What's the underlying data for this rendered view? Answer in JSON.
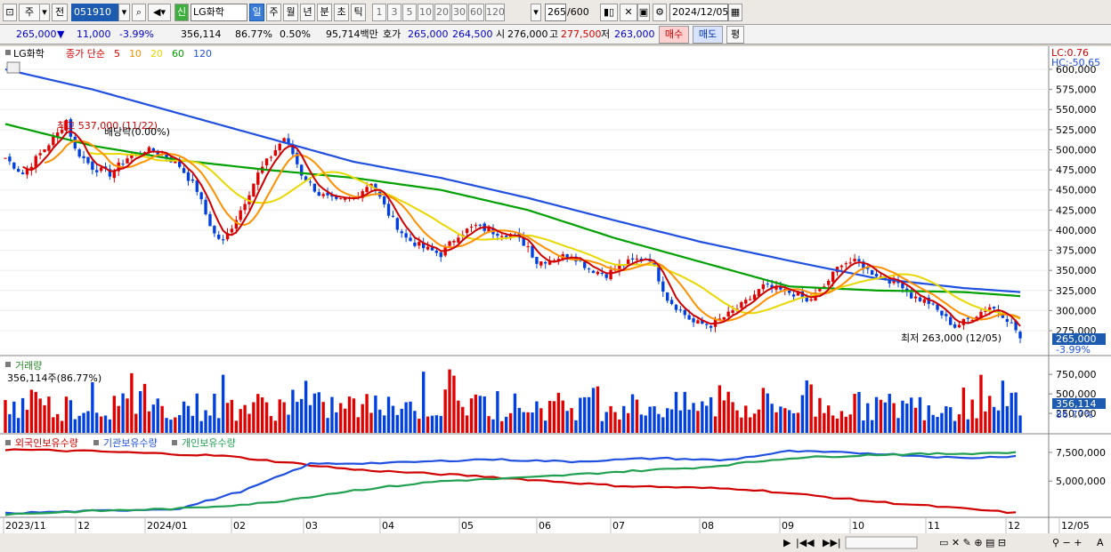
{
  "toolbar": {
    "period_buttons": [
      "일",
      "주",
      "월",
      "년",
      "분",
      "초",
      "틱"
    ],
    "active_period": "일",
    "interval_buttons": [
      "1",
      "3",
      "5",
      "10",
      "20",
      "30",
      "60",
      "120"
    ],
    "market_label": "주",
    "prev_label": "전",
    "code": "051910",
    "new_badge": "신",
    "stock_name": "LG화학",
    "count": "265",
    "count_total": "/600",
    "date": "2024/12/05"
  },
  "quote": {
    "price": "265,000",
    "arrow": "▼",
    "change": "11,000",
    "change_pct": "-3.99%",
    "volume": "356,114",
    "vol_ratio": "86.77%",
    "turnover": "0.50%",
    "amount": "95,714백만",
    "hoga_label": "호가",
    "ask": "265,000",
    "bid": "264,500",
    "open_label": "시",
    "open": "276,000",
    "high_label": "고",
    "high": "277,500",
    "low_label": "저",
    "low": "263,000",
    "buy_button": "매수",
    "sell_button": "매도",
    "eval_button": "평"
  },
  "price_panel": {
    "legend_name": "LG화학",
    "legend_type": "종가 단순",
    "ma_periods": [
      "5",
      "10",
      "20",
      "60",
      "120"
    ],
    "ma_colors": [
      "#d00000",
      "#ff9000",
      "#e8d800",
      "#00a000",
      "#2050e0"
    ],
    "lc": "LC:0.76",
    "hc": "HC:-50.65",
    "high_annotation": "최고 537,000 (11/22)",
    "dividend_annotation": "배당락(0.00%)",
    "low_annotation": "최저 263,000 (12/05)",
    "current_price_tag": "265,000",
    "current_change_tag": "-3.99%",
    "y_ticks": [
      "600,000",
      "575,000",
      "550,000",
      "525,000",
      "500,000",
      "475,000",
      "450,000",
      "425,000",
      "400,000",
      "375,000",
      "350,000",
      "325,000",
      "300,000",
      "275,000"
    ]
  },
  "volume_panel": {
    "title": "거래량",
    "readout": "356,114주(86.77%)",
    "y_ticks": [
      "750,000",
      "500,000",
      "250,000"
    ],
    "current_tag": "356,114",
    "current_pct": "86.77%"
  },
  "holding_panel": {
    "series": [
      {
        "name": "외국인보유수량",
        "color": "#d00000"
      },
      {
        "name": "기관보유수량",
        "color": "#2050e0"
      },
      {
        "name": "개인보유수량",
        "color": "#20a050"
      }
    ],
    "y_ticks": [
      "7,500,000",
      "5,000,000"
    ]
  },
  "x_axis": {
    "labels": [
      "2023/11",
      "12",
      "2024/01",
      "02",
      "03",
      "04",
      "05",
      "06",
      "07",
      "08",
      "09",
      "10",
      "11",
      "12",
      "12/05"
    ]
  },
  "chart_data": {
    "type": "candlestick",
    "y_range": [
      260000,
      610000
    ],
    "price_path": [
      [
        0,
        490000
      ],
      [
        4,
        470000
      ],
      [
        8,
        495000
      ],
      [
        12,
        520000
      ],
      [
        14,
        537000
      ],
      [
        16,
        500000
      ],
      [
        20,
        478000
      ],
      [
        24,
        470000
      ],
      [
        28,
        490000
      ],
      [
        32,
        500000
      ],
      [
        36,
        495000
      ],
      [
        40,
        480000
      ],
      [
        44,
        450000
      ],
      [
        46,
        420000
      ],
      [
        48,
        395000
      ],
      [
        50,
        385000
      ],
      [
        54,
        425000
      ],
      [
        58,
        470000
      ],
      [
        62,
        500000
      ],
      [
        64,
        515000
      ],
      [
        66,
        495000
      ],
      [
        68,
        470000
      ],
      [
        72,
        445000
      ],
      [
        76,
        435000
      ],
      [
        80,
        440000
      ],
      [
        84,
        460000
      ],
      [
        86,
        440000
      ],
      [
        88,
        420000
      ],
      [
        92,
        390000
      ],
      [
        96,
        378000
      ],
      [
        100,
        370000
      ],
      [
        104,
        395000
      ],
      [
        108,
        405000
      ],
      [
        112,
        398000
      ],
      [
        116,
        395000
      ],
      [
        120,
        380000
      ],
      [
        122,
        360000
      ],
      [
        126,
        365000
      ],
      [
        130,
        370000
      ],
      [
        134,
        352000
      ],
      [
        138,
        345000
      ],
      [
        142,
        358000
      ],
      [
        146,
        365000
      ],
      [
        148,
        365000
      ],
      [
        150,
        340000
      ],
      [
        152,
        315000
      ],
      [
        156,
        295000
      ],
      [
        158,
        285000
      ],
      [
        162,
        282000
      ],
      [
        166,
        295000
      ],
      [
        170,
        310000
      ],
      [
        174,
        330000
      ],
      [
        178,
        325000
      ],
      [
        182,
        320000
      ],
      [
        184,
        310000
      ],
      [
        188,
        330000
      ],
      [
        192,
        360000
      ],
      [
        196,
        360000
      ],
      [
        198,
        350000
      ],
      [
        202,
        340000
      ],
      [
        206,
        332000
      ],
      [
        208,
        318000
      ],
      [
        212,
        310000
      ],
      [
        216,
        290000
      ],
      [
        218,
        280000
      ],
      [
        222,
        292000
      ],
      [
        226,
        305000
      ],
      [
        228,
        300000
      ],
      [
        230,
        290000
      ],
      [
        232,
        276000
      ],
      [
        233,
        265000
      ]
    ],
    "moving_averages": {
      "ma60": [
        [
          0,
          532000
        ],
        [
          20,
          505000
        ],
        [
          40,
          487000
        ],
        [
          60,
          475000
        ],
        [
          80,
          465000
        ],
        [
          100,
          450000
        ],
        [
          120,
          425000
        ],
        [
          140,
          390000
        ],
        [
          160,
          360000
        ],
        [
          180,
          330000
        ],
        [
          200,
          325000
        ],
        [
          220,
          323000
        ],
        [
          233,
          318000
        ]
      ],
      "ma120": [
        [
          0,
          600000
        ],
        [
          20,
          575000
        ],
        [
          40,
          545000
        ],
        [
          60,
          515000
        ],
        [
          80,
          485000
        ],
        [
          100,
          465000
        ],
        [
          120,
          440000
        ],
        [
          140,
          412000
        ],
        [
          160,
          385000
        ],
        [
          180,
          362000
        ],
        [
          200,
          340000
        ],
        [
          220,
          328000
        ],
        [
          233,
          323000
        ]
      ]
    },
    "volume_axis": [
      0,
      900000
    ],
    "holding_axis": [
      2000000,
      8500000
    ],
    "foreign_holding": [
      [
        0,
        7750000
      ],
      [
        20,
        7600000
      ],
      [
        50,
        7200000
      ],
      [
        80,
        6000000
      ],
      [
        110,
        5400000
      ],
      [
        140,
        4600000
      ],
      [
        170,
        4300000
      ],
      [
        200,
        3200000
      ],
      [
        220,
        2600000
      ],
      [
        233,
        2200000
      ]
    ],
    "institution_holding": [
      [
        0,
        2200000
      ],
      [
        20,
        2400000
      ],
      [
        40,
        2600000
      ],
      [
        55,
        4200000
      ],
      [
        70,
        6500000
      ],
      [
        90,
        6600000
      ],
      [
        110,
        6900000
      ],
      [
        130,
        6700000
      ],
      [
        150,
        7000000
      ],
      [
        165,
        6800000
      ],
      [
        180,
        7600000
      ],
      [
        200,
        7400000
      ],
      [
        220,
        7000000
      ],
      [
        233,
        7200000
      ]
    ],
    "individual_holding": [
      [
        0,
        2100000
      ],
      [
        20,
        2400000
      ],
      [
        40,
        2600000
      ],
      [
        60,
        3100000
      ],
      [
        80,
        4200000
      ],
      [
        100,
        5000000
      ],
      [
        120,
        5300000
      ],
      [
        140,
        5800000
      ],
      [
        160,
        6200000
      ],
      [
        180,
        7000000
      ],
      [
        200,
        7300000
      ],
      [
        220,
        7400000
      ],
      [
        233,
        7500000
      ]
    ]
  }
}
